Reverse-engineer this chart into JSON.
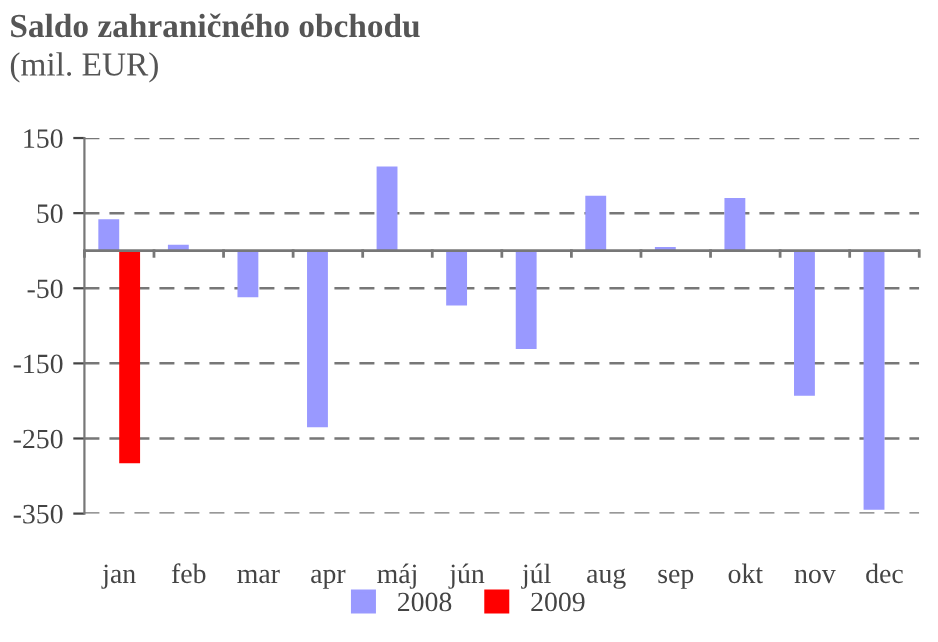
{
  "chart_data": {
    "type": "bar",
    "title": "Saldo zahraničného obchodu",
    "subtitle": "(mil. EUR)",
    "categories": [
      "jan",
      "feb",
      "mar",
      "apr",
      "máj",
      "jún",
      "júl",
      "aug",
      "sep",
      "okt",
      "nov",
      "dec"
    ],
    "series": [
      {
        "name": "2008",
        "color": "#9999ff",
        "values": [
          42,
          8,
          -62,
          -235,
          112,
          -73,
          -131,
          73,
          5,
          70,
          -193,
          -345
        ]
      },
      {
        "name": "2009",
        "color": "#ff0000",
        "values": [
          -283,
          null,
          null,
          null,
          null,
          null,
          null,
          null,
          null,
          null,
          null,
          null
        ]
      }
    ],
    "ylim": [
      -350,
      150
    ],
    "yticks": [
      -350,
      -250,
      -150,
      -50,
      50,
      150
    ],
    "grid": "y",
    "legend": "bottom"
  }
}
